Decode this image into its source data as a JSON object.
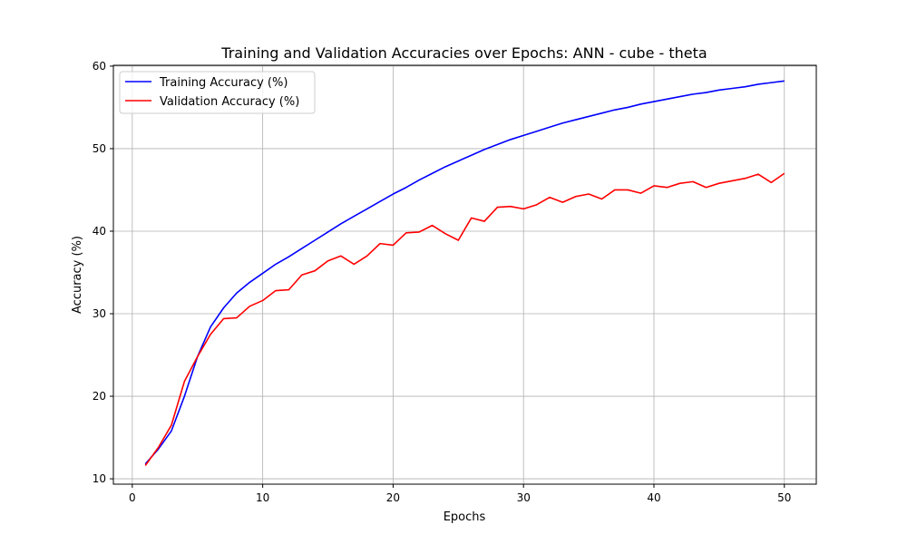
{
  "chart_data": {
    "type": "line",
    "title": "Training and Validation Accuracies over Epochs: ANN - cube - theta",
    "xlabel": "Epochs",
    "ylabel": "Accuracy (%)",
    "xlim": [
      -1.45,
      52.45
    ],
    "ylim": [
      9.35,
      60.1
    ],
    "xticks": [
      0,
      10,
      20,
      30,
      40,
      50
    ],
    "yticks": [
      10,
      20,
      30,
      40,
      50,
      60
    ],
    "grid": true,
    "legend_position": "upper-left",
    "x": [
      1,
      2,
      3,
      4,
      5,
      6,
      7,
      8,
      9,
      10,
      11,
      12,
      13,
      14,
      15,
      16,
      17,
      18,
      19,
      20,
      21,
      22,
      23,
      24,
      25,
      26,
      27,
      28,
      29,
      30,
      31,
      32,
      33,
      34,
      35,
      36,
      37,
      38,
      39,
      40,
      41,
      42,
      43,
      44,
      45,
      46,
      47,
      48,
      49,
      50
    ],
    "series": [
      {
        "name": "Training Accuracy (%)",
        "color": "#0000ff",
        "values": [
          11.8,
          13.6,
          15.8,
          20.0,
          24.8,
          28.4,
          30.7,
          32.5,
          33.8,
          34.9,
          36.0,
          36.9,
          37.9,
          38.9,
          39.9,
          40.9,
          41.8,
          42.7,
          43.6,
          44.5,
          45.3,
          46.2,
          47.0,
          47.8,
          48.5,
          49.2,
          49.9,
          50.5,
          51.1,
          51.6,
          52.1,
          52.6,
          53.1,
          53.5,
          53.9,
          54.3,
          54.7,
          55.0,
          55.4,
          55.7,
          56.0,
          56.3,
          56.6,
          56.8,
          57.1,
          57.3,
          57.5,
          57.8,
          58.0,
          58.2
        ]
      },
      {
        "name": "Validation Accuracy (%)",
        "color": "#ff0000",
        "values": [
          11.6,
          13.8,
          16.5,
          21.8,
          24.8,
          27.5,
          29.4,
          29.5,
          30.9,
          31.6,
          32.8,
          32.9,
          34.7,
          35.2,
          36.4,
          37.0,
          36.0,
          37.0,
          38.5,
          38.3,
          39.8,
          39.9,
          40.7,
          39.7,
          38.9,
          41.6,
          41.2,
          42.9,
          43.0,
          42.7,
          43.2,
          44.1,
          43.5,
          44.2,
          44.5,
          43.9,
          45.0,
          45.0,
          44.6,
          45.5,
          45.3,
          45.8,
          46.0,
          45.3,
          45.8,
          46.1,
          46.4,
          46.9,
          45.9,
          47.0
        ]
      }
    ]
  }
}
